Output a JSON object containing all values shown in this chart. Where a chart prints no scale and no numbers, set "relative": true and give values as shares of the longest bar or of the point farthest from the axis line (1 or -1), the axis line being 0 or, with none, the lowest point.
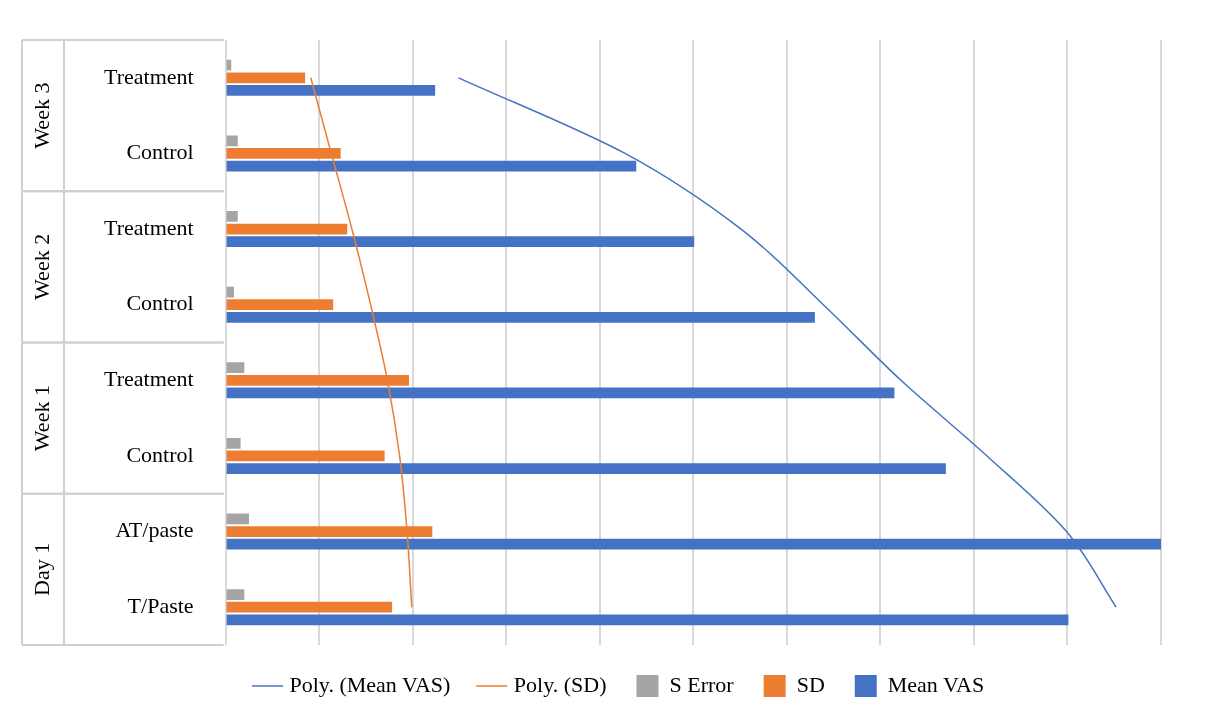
{
  "chart_data": {
    "type": "bar",
    "orientation": "horizontal",
    "relative": true,
    "categories": [
      "Treatment",
      "Control",
      "Treatment",
      "Control",
      "Treatment",
      "Control",
      "AT/paste",
      "T/Paste"
    ],
    "annotations": [
      "Week 3",
      "Week 2",
      "Week 1",
      "Day 1"
    ],
    "series": [
      {
        "name": "S Error",
        "color": "#a5a5a5",
        "values": [
          0.006,
          0.013,
          0.013,
          0.009,
          0.02,
          0.016,
          0.025,
          0.02
        ]
      },
      {
        "name": "SD",
        "color": "#ed7d31",
        "values": [
          0.085,
          0.123,
          0.13,
          0.115,
          0.196,
          0.17,
          0.221,
          0.178
        ]
      },
      {
        "name": "Mean VAS",
        "color": "#4472c4",
        "values": [
          0.224,
          0.439,
          0.501,
          0.63,
          0.715,
          0.77,
          1,
          0.901
        ]
      },
      {
        "name": "Poly. (Mean VAS)",
        "type": "line",
        "color": "#4472c4",
        "values": [
          0.249,
          0.427,
          0.551,
          0.639,
          0.722,
          0.814,
          0.899,
          0.952
        ]
      },
      {
        "name": "Poly. (SD)",
        "type": "line",
        "color": "#ed7d31",
        "values": [
          0.091,
          0.113,
          0.135,
          0.155,
          0.173,
          0.186,
          0.194,
          0.199
        ]
      }
    ],
    "grid": "x",
    "legend": "bottom",
    "marker": "none",
    "line_style": "solid"
  }
}
